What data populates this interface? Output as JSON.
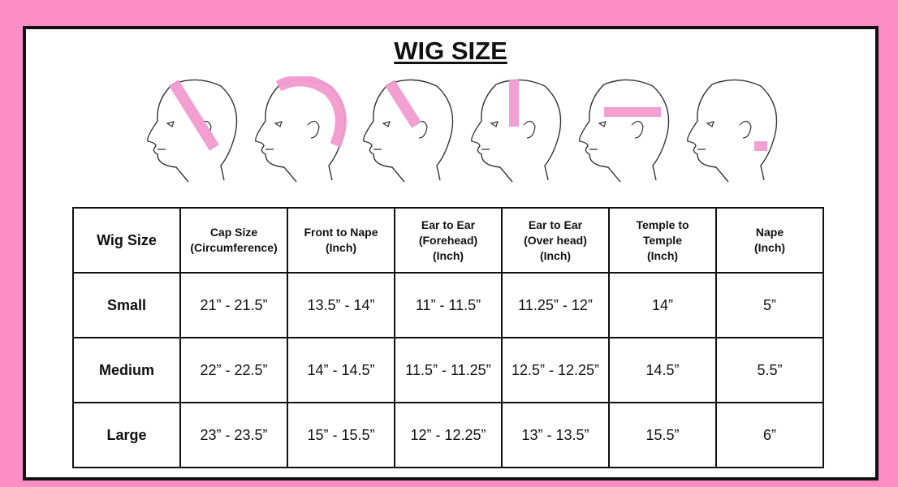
{
  "title": "WIG SIZE",
  "colors": {
    "background": "#fc8dc7",
    "tape": "#f29ad0",
    "border": "#111111"
  },
  "diagrams": [
    {
      "icon": "head-measure-circumference-icon"
    },
    {
      "icon": "head-measure-front-to-nape-icon"
    },
    {
      "icon": "head-measure-ear-to-ear-forehead-icon"
    },
    {
      "icon": "head-measure-ear-to-ear-overhead-icon"
    },
    {
      "icon": "head-measure-temple-to-temple-icon"
    },
    {
      "icon": "head-measure-nape-icon"
    }
  ],
  "table": {
    "headers": [
      [
        "Wig Size"
      ],
      [
        "Cap Size",
        "(Circumference)"
      ],
      [
        "Front to Nape",
        "(Inch)"
      ],
      [
        "Ear to Ear",
        "(Forehead)",
        "(Inch)"
      ],
      [
        "Ear to Ear",
        "(Over head)",
        "(Inch)"
      ],
      [
        "Temple to",
        "Temple",
        "(Inch)"
      ],
      [
        "Nape",
        "(Inch)"
      ]
    ],
    "rows": [
      [
        "Small",
        "21” - 21.5”",
        "13.5” - 14”",
        "11” - 11.5”",
        "11.25” - 12”",
        "14”",
        "5”"
      ],
      [
        "Medium",
        "22” - 22.5”",
        "14” - 14.5”",
        "11.5” - 11.25”",
        "12.5” - 12.25”",
        "14.5”",
        "5.5”"
      ],
      [
        "Large",
        "23” - 23.5”",
        "15” - 15.5”",
        "12” - 12.25”",
        "13” - 13.5”",
        "15.5”",
        "6”"
      ]
    ]
  }
}
